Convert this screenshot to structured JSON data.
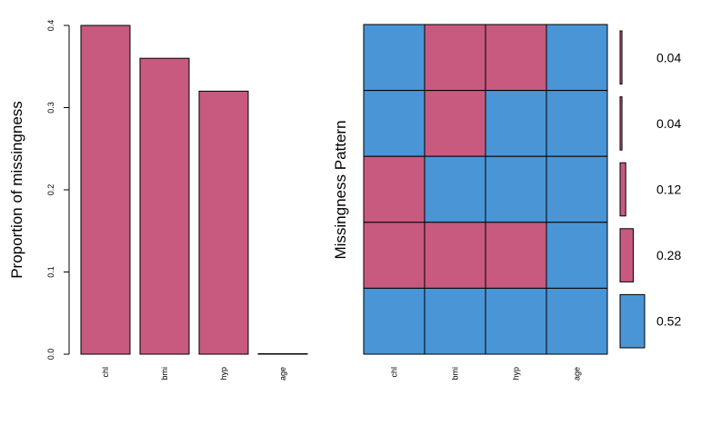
{
  "colors": {
    "missing": "#C75A7E",
    "observed": "#4A95D6",
    "outline": "#000000"
  },
  "chart_data": [
    {
      "type": "bar",
      "title": "",
      "xlabel": "",
      "ylabel": "Proportion of missingness",
      "categories": [
        "chl",
        "bmi",
        "hyp",
        "age"
      ],
      "values": [
        0.4,
        0.36,
        0.32,
        0.0
      ],
      "ylim": [
        0,
        0.4
      ],
      "yticks": [
        "0.0",
        "0.1",
        "0.2",
        "0.3",
        "0.4"
      ],
      "grid": false,
      "legend": "none"
    },
    {
      "type": "heatmap",
      "title": "",
      "xlabel": "",
      "ylabel": "Missingness Pattern",
      "columns": [
        "chl",
        "bmi",
        "hyp",
        "age"
      ],
      "patterns": [
        {
          "missing": [
            false,
            true,
            true,
            false
          ],
          "proportion": "0.04",
          "value": 0.04
        },
        {
          "missing": [
            false,
            true,
            false,
            false
          ],
          "proportion": "0.04",
          "value": 0.04
        },
        {
          "missing": [
            true,
            false,
            false,
            false
          ],
          "proportion": "0.12",
          "value": 0.12
        },
        {
          "missing": [
            true,
            true,
            true,
            false
          ],
          "proportion": "0.28",
          "value": 0.28
        },
        {
          "missing": [
            false,
            false,
            false,
            false
          ],
          "proportion": "0.52",
          "value": 0.52
        }
      ],
      "grid": false,
      "legend": "none"
    }
  ]
}
